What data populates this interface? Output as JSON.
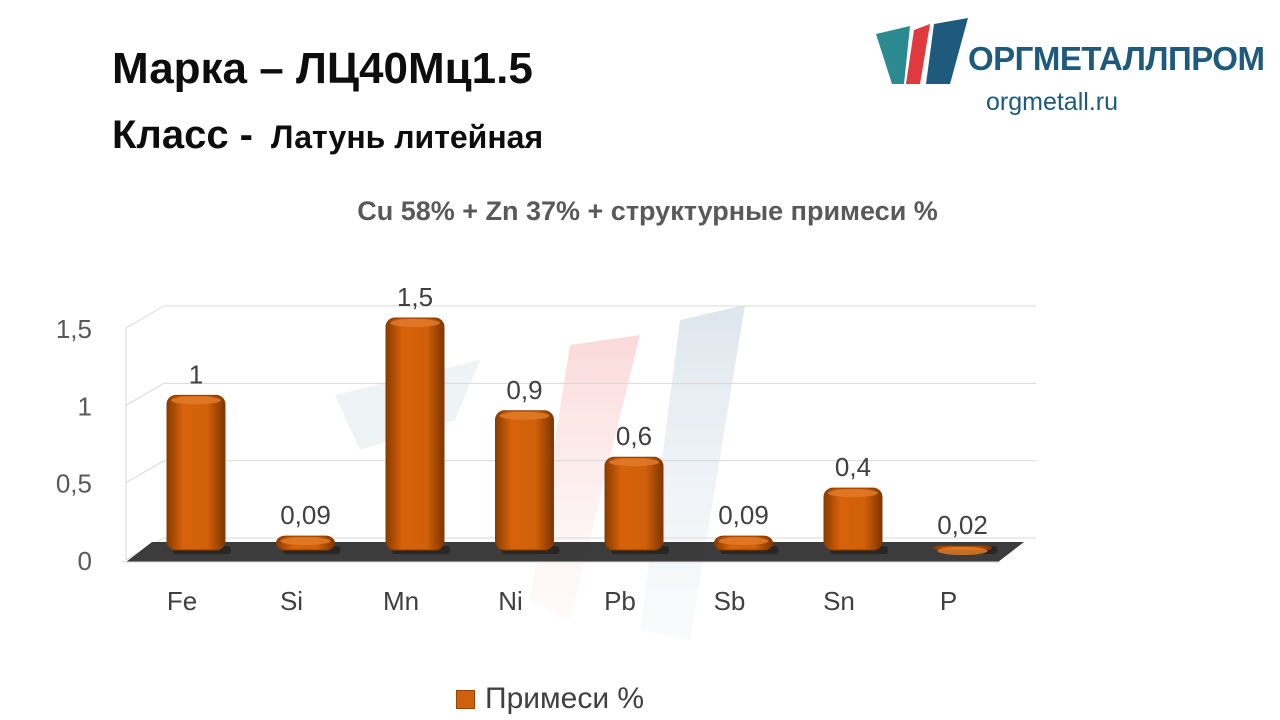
{
  "header": {
    "grade_label": "Марка",
    "grade_dash": "–",
    "grade_value": "ЛЦ40Мц1.5",
    "class_label": "Класс -",
    "class_value": "Латунь литейная"
  },
  "logo": {
    "name": "ОРГМЕТАЛЛПРОМ",
    "url": "orgmetall.ru",
    "colors": {
      "red": "#e03a3e",
      "blue": "#1d5a7b",
      "teal": "#2a8a8f"
    }
  },
  "chart_data": {
    "type": "bar",
    "title": "Cu 58% + Zn 37% + структурные примеси %",
    "categories": [
      "Fe",
      "Si",
      "Mn",
      "Ni",
      "Pb",
      "Sb",
      "Sn",
      "P"
    ],
    "series": [
      {
        "name": "Примеси %",
        "values": [
          1,
          0.09,
          1.5,
          0.9,
          0.6,
          0.09,
          0.4,
          0.02
        ],
        "labels": [
          "1",
          "0,09",
          "1,5",
          "0,9",
          "0,6",
          "0,09",
          "0,4",
          "0,02"
        ],
        "color": "#d0600a"
      }
    ],
    "y_ticks": [
      0,
      0.5,
      1,
      1.5
    ],
    "y_tick_labels": [
      "0",
      "0,5",
      "1",
      "1,5"
    ],
    "ylim": [
      0,
      1.5
    ],
    "grid": true,
    "legend_position": "bottom",
    "style": "3d-cylinder-bar"
  }
}
